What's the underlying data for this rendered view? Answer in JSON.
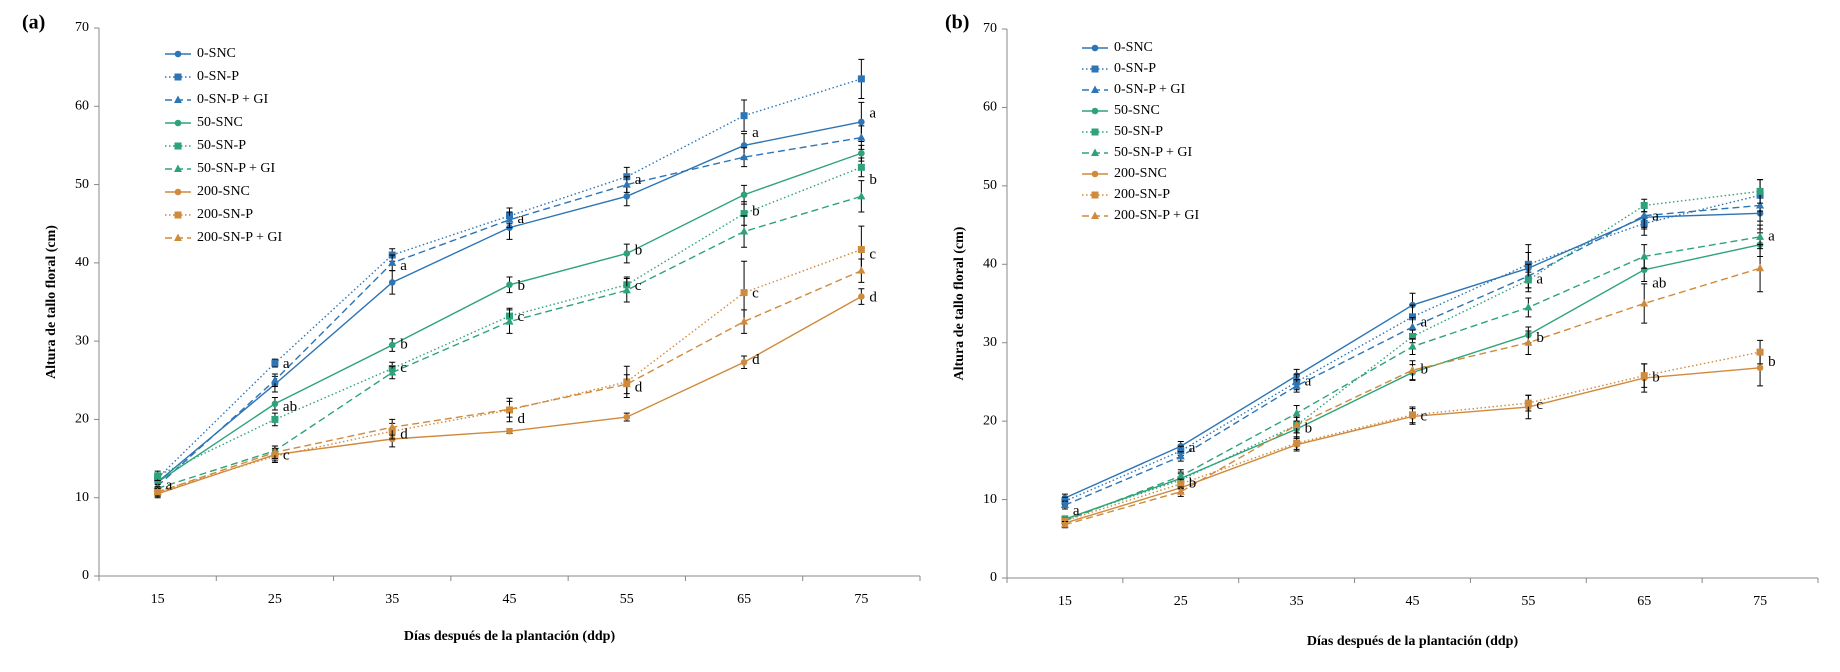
{
  "chart_data": [
    {
      "type": "line",
      "panel_label": "(a)",
      "xlabel": "Días después de la plantación  (ddp)",
      "ylabel": "Altura de tallo floral (cm)",
      "categories": [
        "15",
        "25",
        "35",
        "45",
        "55",
        "65",
        "75"
      ],
      "ylim": [
        0,
        70
      ],
      "yticks": [
        0,
        10,
        20,
        30,
        40,
        50,
        60,
        70
      ],
      "series": [
        {
          "name": "0-SNC",
          "color": "#2e75b6",
          "dash": "solid",
          "marker": "circle",
          "values": [
            12,
            24.5,
            37.5,
            44.5,
            48.5,
            55,
            58
          ],
          "errors": [
            0.8,
            1,
            1.5,
            1.5,
            1.2,
            1.5,
            2.5
          ]
        },
        {
          "name": "0-SN-P",
          "color": "#2e75b6",
          "dash": "dotted",
          "marker": "square",
          "values": [
            12.5,
            27.2,
            41,
            46,
            51,
            58.8,
            63.5
          ],
          "errors": [
            0.6,
            0.5,
            0.8,
            1,
            1.2,
            2,
            2.5
          ]
        },
        {
          "name": "0-SN-P + GI",
          "color": "#2e75b6",
          "dash": "dashed",
          "marker": "triangle",
          "values": [
            11.5,
            25,
            40,
            45.5,
            50,
            53.5,
            56
          ],
          "errors": [
            0.6,
            0.8,
            1,
            1,
            1,
            1.2,
            1.5
          ]
        },
        {
          "name": "50-SNC",
          "color": "#2ea37a",
          "dash": "solid",
          "marker": "circle",
          "values": [
            12,
            22,
            29.5,
            37.2,
            41.2,
            48.7,
            54
          ],
          "errors": [
            0.8,
            0.8,
            0.8,
            1,
            1.2,
            1.2,
            1
          ]
        },
        {
          "name": "50-SN-P",
          "color": "#2ea37a",
          "dash": "dotted",
          "marker": "square",
          "values": [
            12.8,
            20,
            26.5,
            33.2,
            37.2,
            46.3,
            52.2
          ],
          "errors": [
            0.6,
            0.8,
            0.8,
            1,
            1,
            1.5,
            1.2
          ]
        },
        {
          "name": "50-SN-P + GI",
          "color": "#2ea37a",
          "dash": "dashed",
          "marker": "triangle",
          "values": [
            11.2,
            16,
            26,
            32.5,
            36.5,
            44,
            48.5
          ],
          "errors": [
            0.5,
            0.6,
            0.8,
            1.5,
            1.5,
            2,
            2
          ]
        },
        {
          "name": "200-SNC",
          "color": "#d08a3c",
          "dash": "solid",
          "marker": "circle",
          "values": [
            10.5,
            15.5,
            17.5,
            18.5,
            20.3,
            27.3,
            35.7
          ],
          "errors": [
            0.5,
            0.8,
            1,
            0.3,
            0.5,
            0.8,
            1
          ]
        },
        {
          "name": "200-SN-P",
          "color": "#d08a3c",
          "dash": "dotted",
          "marker": "square",
          "values": [
            10.8,
            15.3,
            18.5,
            21.2,
            24.8,
            36.2,
            41.7
          ],
          "errors": [
            0.6,
            0.8,
            1,
            1.5,
            2,
            4,
            3
          ]
        },
        {
          "name": "200-SN-P + GI",
          "color": "#d08a3c",
          "dash": "dashed",
          "marker": "triangle",
          "values": [
            10.7,
            15.8,
            19,
            21.3,
            24.5,
            32.5,
            39
          ],
          "errors": [
            0.5,
            0.8,
            1,
            1,
            1.2,
            1.5,
            1.5
          ]
        }
      ],
      "annotations": [
        {
          "x": "15",
          "y": 11.5,
          "text": "a"
        },
        {
          "x": "25",
          "y": 27,
          "text": "a"
        },
        {
          "x": "25",
          "y": 21.5,
          "text": "ab"
        },
        {
          "x": "25",
          "y": 15.3,
          "text": "c"
        },
        {
          "x": "35",
          "y": 39.5,
          "text": "a"
        },
        {
          "x": "35",
          "y": 29.5,
          "text": "b"
        },
        {
          "x": "35",
          "y": 26.5,
          "text": "c"
        },
        {
          "x": "35",
          "y": 18,
          "text": "d"
        },
        {
          "x": "45",
          "y": 45.5,
          "text": "a"
        },
        {
          "x": "45",
          "y": 37,
          "text": "b"
        },
        {
          "x": "45",
          "y": 33,
          "text": "c"
        },
        {
          "x": "45",
          "y": 20,
          "text": "d"
        },
        {
          "x": "55",
          "y": 50.5,
          "text": "a"
        },
        {
          "x": "55",
          "y": 41.5,
          "text": "b"
        },
        {
          "x": "55",
          "y": 37,
          "text": "c"
        },
        {
          "x": "55",
          "y": 24,
          "text": "d"
        },
        {
          "x": "65",
          "y": 56.5,
          "text": "a"
        },
        {
          "x": "65",
          "y": 46.5,
          "text": "b"
        },
        {
          "x": "65",
          "y": 36,
          "text": "c"
        },
        {
          "x": "65",
          "y": 27.5,
          "text": "d"
        },
        {
          "x": "75",
          "y": 59,
          "text": "a"
        },
        {
          "x": "75",
          "y": 50.5,
          "text": "b"
        },
        {
          "x": "75",
          "y": 41,
          "text": "c"
        },
        {
          "x": "75",
          "y": 35.5,
          "text": "d"
        }
      ]
    },
    {
      "type": "line",
      "panel_label": "(b)",
      "xlabel": "Días después de la plantación  (ddp)",
      "ylabel": "Altura de tallo floral (cm)",
      "categories": [
        "15",
        "25",
        "35",
        "45",
        "55",
        "65",
        "75"
      ],
      "ylim": [
        0,
        70
      ],
      "yticks": [
        0,
        10,
        20,
        30,
        40,
        50,
        60,
        70
      ],
      "series": [
        {
          "name": "0-SNC",
          "color": "#2e75b6",
          "dash": "solid",
          "marker": "circle",
          "values": [
            10.2,
            16.8,
            25.8,
            34.8,
            39.5,
            46,
            46.5
          ],
          "errors": [
            0.5,
            0.6,
            0.8,
            1.5,
            3,
            1.5,
            2
          ]
        },
        {
          "name": "0-SN-P",
          "color": "#2e75b6",
          "dash": "dotted",
          "marker": "square",
          "values": [
            9.8,
            16.2,
            25,
            33.3,
            40,
            45.2,
            48.8
          ],
          "errors": [
            0.5,
            0.6,
            1,
            1.5,
            1.5,
            1.5,
            2
          ]
        },
        {
          "name": "0-SN-P + GI",
          "color": "#2e75b6",
          "dash": "dashed",
          "marker": "triangle",
          "values": [
            9.3,
            15.5,
            24.5,
            32,
            38.5,
            46.2,
            47.5
          ],
          "errors": [
            0.5,
            0.6,
            0.8,
            1.2,
            1.5,
            1.5,
            2
          ]
        },
        {
          "name": "50-SNC",
          "color": "#2ea37a",
          "dash": "solid",
          "marker": "circle",
          "values": [
            7.5,
            12.7,
            19,
            26.2,
            31,
            39.3,
            42.5
          ],
          "errors": [
            0.4,
            0.8,
            1,
            1,
            1,
            1.5,
            1.5
          ]
        },
        {
          "name": "50-SN-P",
          "color": "#2ea37a",
          "dash": "dotted",
          "marker": "square",
          "values": [
            7.5,
            12.5,
            19.5,
            30.8,
            38,
            47.5,
            49.3
          ],
          "errors": [
            0.4,
            0.8,
            1,
            0.8,
            1,
            0.8,
            1.5
          ]
        },
        {
          "name": "50-SN-P + GI",
          "color": "#2ea37a",
          "dash": "dashed",
          "marker": "triangle",
          "values": [
            7.3,
            13,
            21,
            29.5,
            34.5,
            41,
            43.5
          ],
          "errors": [
            0.4,
            0.8,
            1,
            1,
            1.2,
            1.5,
            1.5
          ]
        },
        {
          "name": "200-SNC",
          "color": "#d08a3c",
          "dash": "solid",
          "marker": "circle",
          "values": [
            7,
            11.5,
            17,
            20.6,
            21.8,
            25.5,
            26.8
          ],
          "errors": [
            0.4,
            0.6,
            0.8,
            1,
            1.5,
            1.8,
            2.3
          ]
        },
        {
          "name": "200-SN-P",
          "color": "#d08a3c",
          "dash": "dotted",
          "marker": "square",
          "values": [
            7.3,
            12,
            17.2,
            20.8,
            22.3,
            25.8,
            28.8
          ],
          "errors": [
            0.4,
            0.6,
            0.8,
            1,
            1,
            1.5,
            1.5
          ]
        },
        {
          "name": "200-SN-P + GI",
          "color": "#d08a3c",
          "dash": "dashed",
          "marker": "triangle",
          "values": [
            6.8,
            11,
            19.5,
            26.5,
            30,
            35,
            39.5
          ],
          "errors": [
            0.4,
            0.6,
            1,
            1.2,
            1.5,
            2.5,
            3
          ]
        }
      ],
      "annotations": [
        {
          "x": "15",
          "y": 8.5,
          "text": "a"
        },
        {
          "x": "25",
          "y": 16.5,
          "text": "a"
        },
        {
          "x": "25",
          "y": 12,
          "text": "b"
        },
        {
          "x": "35",
          "y": 25,
          "text": "a"
        },
        {
          "x": "35",
          "y": 19,
          "text": "b"
        },
        {
          "x": "45",
          "y": 32.5,
          "text": "a"
        },
        {
          "x": "45",
          "y": 26.5,
          "text": "b"
        },
        {
          "x": "45",
          "y": 20.5,
          "text": "c"
        },
        {
          "x": "55",
          "y": 38,
          "text": "a"
        },
        {
          "x": "55",
          "y": 30.5,
          "text": "b"
        },
        {
          "x": "55",
          "y": 22,
          "text": "c"
        },
        {
          "x": "65",
          "y": 46,
          "text": "a"
        },
        {
          "x": "65",
          "y": 37.5,
          "text": "ab"
        },
        {
          "x": "65",
          "y": 25.5,
          "text": "b"
        },
        {
          "x": "75",
          "y": 43.5,
          "text": "a"
        },
        {
          "x": "75",
          "y": 27.5,
          "text": "b"
        }
      ]
    }
  ]
}
